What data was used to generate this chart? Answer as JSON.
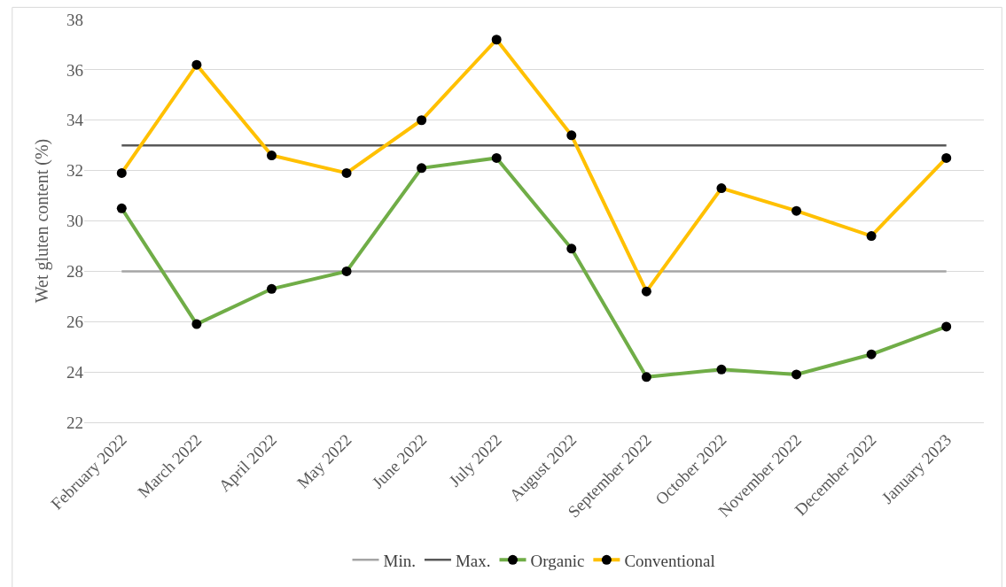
{
  "chart_data": {
    "type": "line",
    "ylabel": "Wet gluten content (%)",
    "categories": [
      "February 2022",
      "March 2022",
      "April 2022",
      "May 2022",
      "June 2022",
      "July 2022",
      "August 2022",
      "September 2022",
      "October 2022",
      "November 2022",
      "December 2022",
      "January 2023"
    ],
    "series": [
      {
        "name": "Min.",
        "color": "#a5a5a5",
        "marker": "none",
        "values": [
          28,
          28,
          28,
          28,
          28,
          28,
          28,
          28,
          28,
          28,
          28,
          28
        ]
      },
      {
        "name": "Max.",
        "color": "#595959",
        "marker": "none",
        "values": [
          33,
          33,
          33,
          33,
          33,
          33,
          33,
          33,
          33,
          33,
          33,
          33
        ]
      },
      {
        "name": "Organic",
        "color": "#70ad47",
        "values": [
          30.5,
          25.9,
          27.3,
          28.0,
          32.1,
          32.5,
          28.9,
          23.8,
          24.1,
          23.9,
          24.7,
          25.8
        ]
      },
      {
        "name": "Conventional",
        "color": "#ffc000",
        "values": [
          31.9,
          36.2,
          32.6,
          31.9,
          34.0,
          37.2,
          33.4,
          27.2,
          31.3,
          30.4,
          29.4,
          32.5
        ]
      }
    ],
    "ylim": [
      22,
      38
    ],
    "yticks": [
      22,
      24,
      26,
      28,
      30,
      32,
      34,
      36,
      38
    ],
    "grid": "y",
    "legend": "bottom",
    "marker": "circle",
    "line_style": "solid"
  }
}
